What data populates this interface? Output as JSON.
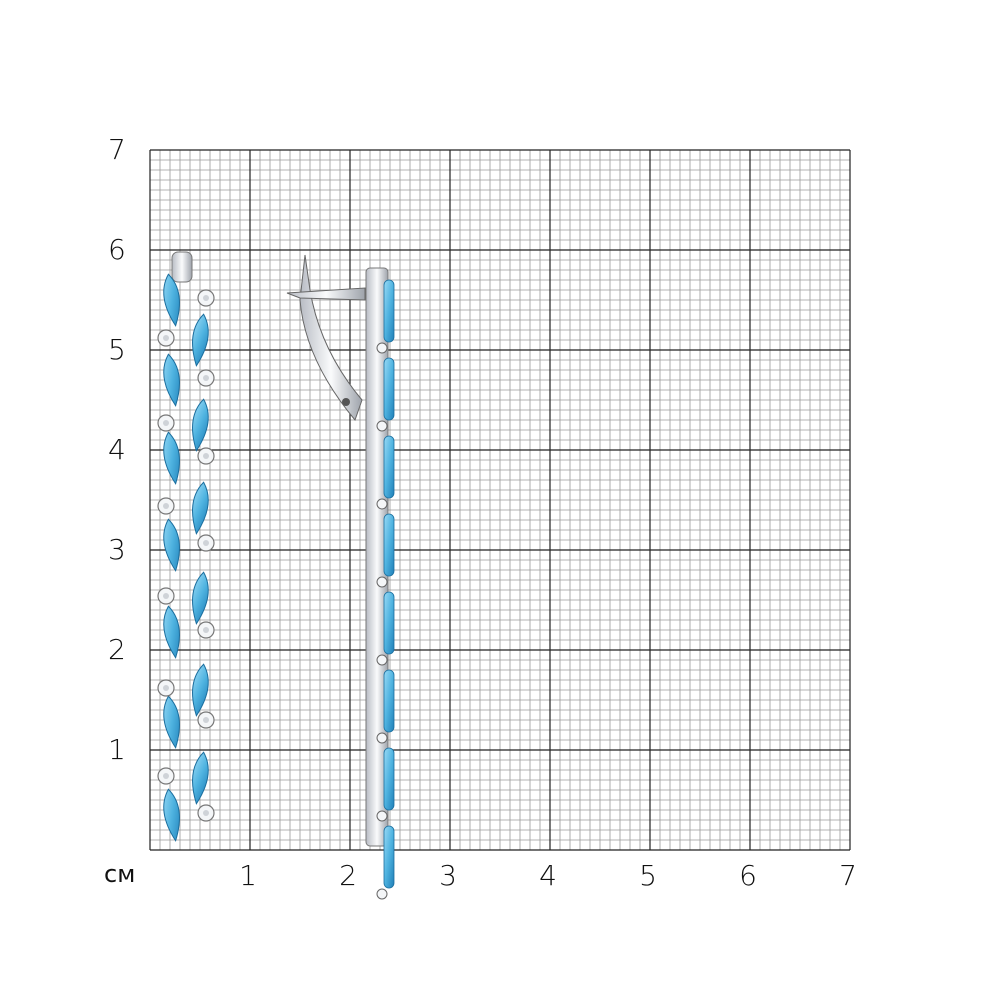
{
  "scale": {
    "unit": "см",
    "x_ticks": [
      "1",
      "2",
      "3",
      "4",
      "5",
      "6",
      "7"
    ],
    "y_ticks": [
      "1",
      "2",
      "3",
      "4",
      "5",
      "6",
      "7"
    ]
  },
  "colors": {
    "major_grid": "#222222",
    "minor_grid": "#9a9a9a",
    "stone_blue": "#4fb3e0",
    "metal": "#e6e8ec"
  },
  "product": {
    "views": [
      "front",
      "side"
    ],
    "stones": [
      "blue marquise",
      "white round"
    ]
  }
}
